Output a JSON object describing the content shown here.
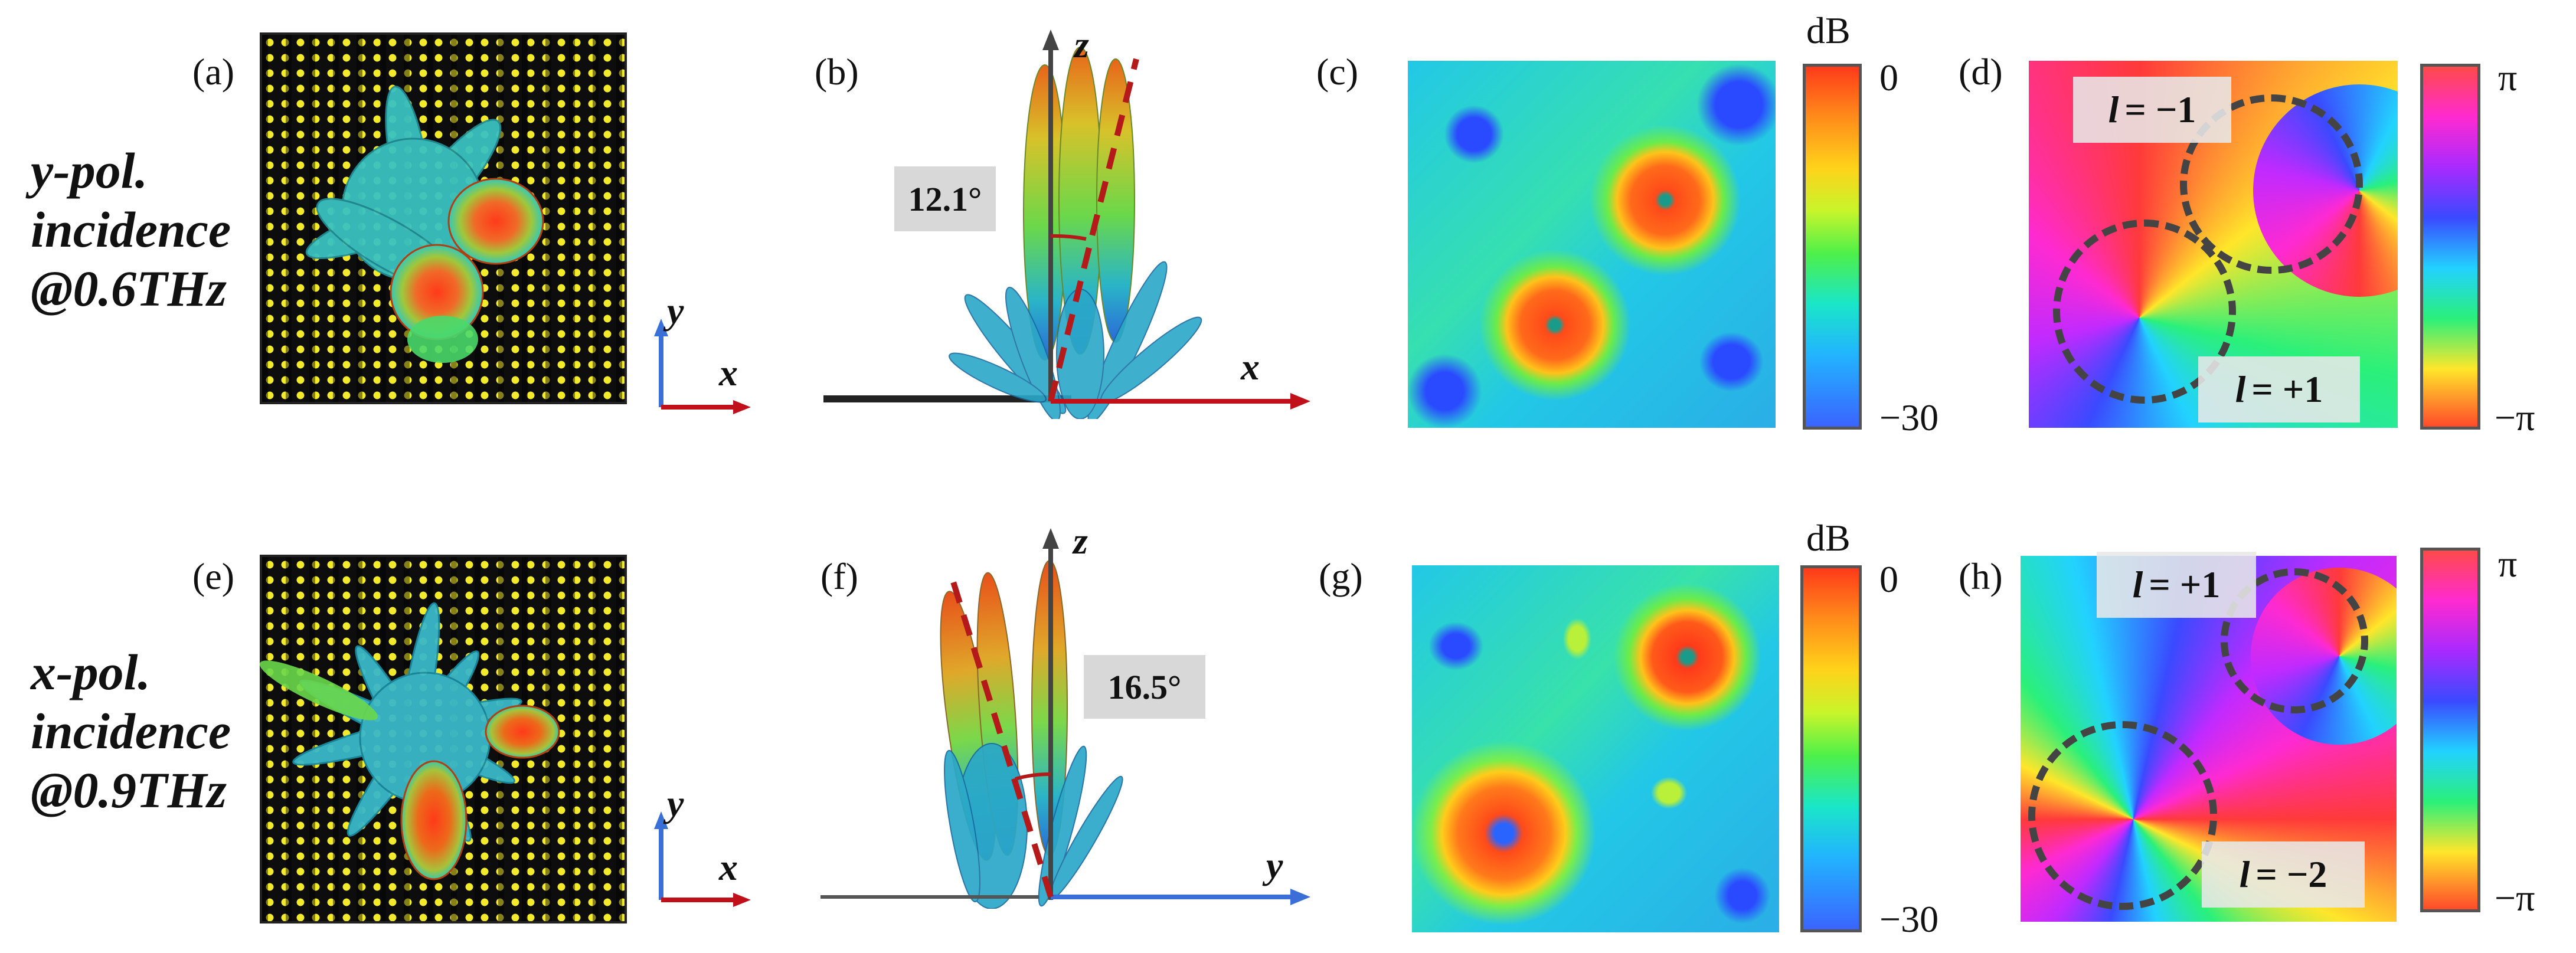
{
  "row_labels": [
    {
      "pol": "y-pol.",
      "inc": "incidence",
      "freq": "@0.6THz"
    },
    {
      "pol": "x-pol.",
      "inc": "incidence",
      "freq": "@0.9THz"
    }
  ],
  "panels": {
    "a": "(a)",
    "b": "(b)",
    "c": "(c)",
    "d": "(d)",
    "e": "(e)",
    "f": "(f)",
    "g": "(g)",
    "h": "(h)"
  },
  "axes": {
    "a": {
      "v": "y",
      "h": "x"
    },
    "b": {
      "v": "z",
      "h": "x"
    },
    "e": {
      "v": "y",
      "h": "x"
    },
    "f": {
      "v": "z",
      "h": "y"
    }
  },
  "angles": {
    "b": "12.1°",
    "f": "16.5°"
  },
  "colorbar_amp": {
    "unit": "dB",
    "max": "0",
    "min": "−30"
  },
  "colorbar_phase": {
    "max": "π",
    "min": "−π"
  },
  "oam_modes": {
    "d": [
      {
        "l": "l",
        "val": "= −1"
      },
      {
        "l": "l",
        "val": "= +1"
      }
    ],
    "h": [
      {
        "l": "l",
        "val": "= +1"
      },
      {
        "l": "l",
        "val": "= −2"
      }
    ]
  },
  "colors": {
    "axis_red": "#c0101a",
    "axis_blue": "#3a6fd8",
    "dashed": "#b41a1a",
    "axis_dark": "#444444"
  }
}
